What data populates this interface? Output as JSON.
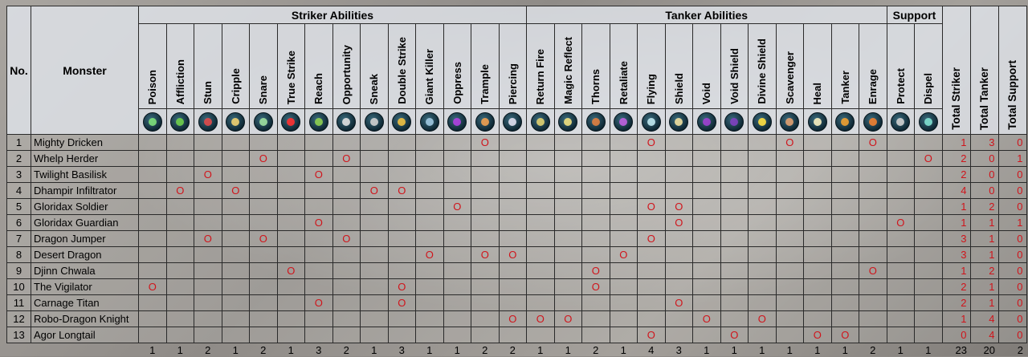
{
  "headers": {
    "no": "No.",
    "monster": "Monster",
    "striker": "Striker Abilities",
    "tanker": "Tanker Abilities",
    "support": "Support",
    "total_striker": "Total Striker",
    "total_tanker": "Total Tanker",
    "total_support": "Total Support"
  },
  "abilities": [
    {
      "name": "Poison",
      "group": "striker",
      "icon": "poison-icon",
      "color": "#7de07a",
      "count": "1"
    },
    {
      "name": "Affliction",
      "group": "striker",
      "icon": "affliction-icon",
      "color": "#6fcf4a",
      "count": "1"
    },
    {
      "name": "Stun",
      "group": "striker",
      "icon": "stun-icon",
      "color": "#e04a4a",
      "count": "2"
    },
    {
      "name": "Cripple",
      "group": "striker",
      "icon": "cripple-icon",
      "color": "#f0d070",
      "count": "1"
    },
    {
      "name": "Snare",
      "group": "striker",
      "icon": "snare-icon",
      "color": "#9ee0a0",
      "count": "2"
    },
    {
      "name": "True Strike",
      "group": "striker",
      "icon": "true-strike-icon",
      "color": "#ff3030",
      "count": "1"
    },
    {
      "name": "Reach",
      "group": "striker",
      "icon": "reach-icon",
      "color": "#8ecf50",
      "count": "3"
    },
    {
      "name": "Opportunity",
      "group": "striker",
      "icon": "opportunity-icon",
      "color": "#e0e0e0",
      "count": "2"
    },
    {
      "name": "Sneak",
      "group": "striker",
      "icon": "sneak-icon",
      "color": "#d0d0d0",
      "count": "1"
    },
    {
      "name": "Double Strike",
      "group": "striker",
      "icon": "double-strike-icon",
      "color": "#f0c040",
      "count": "3"
    },
    {
      "name": "Giant Killer",
      "group": "striker",
      "icon": "giant-killer-icon",
      "color": "#a0c8e0",
      "count": "1"
    },
    {
      "name": "Oppress",
      "group": "striker",
      "icon": "oppress-icon",
      "color": "#b040e0",
      "count": "1"
    },
    {
      "name": "Trample",
      "group": "striker",
      "icon": "trample-icon",
      "color": "#f0a050",
      "count": "2"
    },
    {
      "name": "Piercing",
      "group": "striker",
      "icon": "piercing-icon",
      "color": "#e0e0f0",
      "count": "2"
    },
    {
      "name": "Return Fire",
      "group": "tanker",
      "icon": "return-fire-icon",
      "color": "#e0d070",
      "count": "1"
    },
    {
      "name": "Magic Reflect",
      "group": "tanker",
      "icon": "magic-reflect-icon",
      "color": "#f0e080",
      "count": "1"
    },
    {
      "name": "Thorns",
      "group": "tanker",
      "icon": "thorns-icon",
      "color": "#e08040",
      "count": "2"
    },
    {
      "name": "Retaliate",
      "group": "tanker",
      "icon": "retaliate-icon",
      "color": "#c060e0",
      "count": "1"
    },
    {
      "name": "Flying",
      "group": "tanker",
      "icon": "flying-icon",
      "color": "#c0e8f0",
      "count": "4"
    },
    {
      "name": "Shield",
      "group": "tanker",
      "icon": "shield-icon",
      "color": "#f0e0a0",
      "count": "3"
    },
    {
      "name": "Void",
      "group": "tanker",
      "icon": "void-icon",
      "color": "#a040d0",
      "count": "1"
    },
    {
      "name": "Void Shield",
      "group": "tanker",
      "icon": "void-shield-icon",
      "color": "#8040c0",
      "count": "1"
    },
    {
      "name": "Divine Shield",
      "group": "tanker",
      "icon": "divine-shield-icon",
      "color": "#ffe040",
      "count": "1"
    },
    {
      "name": "Scavenger",
      "group": "tanker",
      "icon": "scavenger-icon",
      "color": "#e0a070",
      "count": "1"
    },
    {
      "name": "Heal",
      "group": "tanker",
      "icon": "heal-icon",
      "color": "#f8f0c0",
      "count": "1"
    },
    {
      "name": "Tanker",
      "group": "tanker",
      "icon": "tanker-icon",
      "color": "#f0a030",
      "count": "1"
    },
    {
      "name": "Enrage",
      "group": "tanker",
      "icon": "enrage-icon",
      "color": "#f08030",
      "count": "2"
    },
    {
      "name": "Protect",
      "group": "support",
      "icon": "protect-icon",
      "color": "#d0d0d0",
      "count": "1"
    },
    {
      "name": "Dispel",
      "group": "support",
      "icon": "dispel-icon",
      "color": "#80e0d0",
      "count": "1"
    }
  ],
  "mark_symbol": "O",
  "monsters": [
    {
      "no": "1",
      "name": "Mighty Dricken",
      "marks": [
        12,
        18,
        23,
        26
      ],
      "striker": "1",
      "tanker": "3",
      "support": "0"
    },
    {
      "no": "2",
      "name": "Whelp Herder",
      "marks": [
        4,
        7,
        28
      ],
      "striker": "2",
      "tanker": "0",
      "support": "1"
    },
    {
      "no": "3",
      "name": "Twilight Basilisk",
      "marks": [
        2,
        6
      ],
      "striker": "2",
      "tanker": "0",
      "support": "0"
    },
    {
      "no": "4",
      "name": "Dhampir Infiltrator",
      "marks": [
        1,
        3,
        8,
        9
      ],
      "striker": "4",
      "tanker": "0",
      "support": "0"
    },
    {
      "no": "5",
      "name": "Gloridax Soldier",
      "marks": [
        11,
        18,
        19
      ],
      "striker": "1",
      "tanker": "2",
      "support": "0"
    },
    {
      "no": "6",
      "name": "Gloridax Guardian",
      "marks": [
        6,
        19,
        27
      ],
      "striker": "1",
      "tanker": "1",
      "support": "1"
    },
    {
      "no": "7",
      "name": "Dragon Jumper",
      "marks": [
        2,
        4,
        7,
        18
      ],
      "striker": "3",
      "tanker": "1",
      "support": "0"
    },
    {
      "no": "8",
      "name": "Desert Dragon",
      "marks": [
        10,
        12,
        13,
        17
      ],
      "striker": "3",
      "tanker": "1",
      "support": "0"
    },
    {
      "no": "9",
      "name": "Djinn Chwala",
      "marks": [
        5,
        16,
        26
      ],
      "striker": "1",
      "tanker": "2",
      "support": "0"
    },
    {
      "no": "10",
      "name": "The Vigilator",
      "marks": [
        0,
        9,
        16
      ],
      "striker": "2",
      "tanker": "1",
      "support": "0"
    },
    {
      "no": "11",
      "name": "Carnage Titan",
      "marks": [
        6,
        9,
        19
      ],
      "striker": "2",
      "tanker": "1",
      "support": "0"
    },
    {
      "no": "12",
      "name": "Robo-Dragon Knight",
      "marks": [
        13,
        14,
        15,
        20,
        22
      ],
      "striker": "1",
      "tanker": "4",
      "support": "0"
    },
    {
      "no": "13",
      "name": "Agor Longtail",
      "marks": [
        18,
        21,
        24,
        25
      ],
      "striker": "0",
      "tanker": "4",
      "support": "0"
    }
  ],
  "totals": {
    "striker": "23",
    "tanker": "20",
    "support": "2"
  }
}
